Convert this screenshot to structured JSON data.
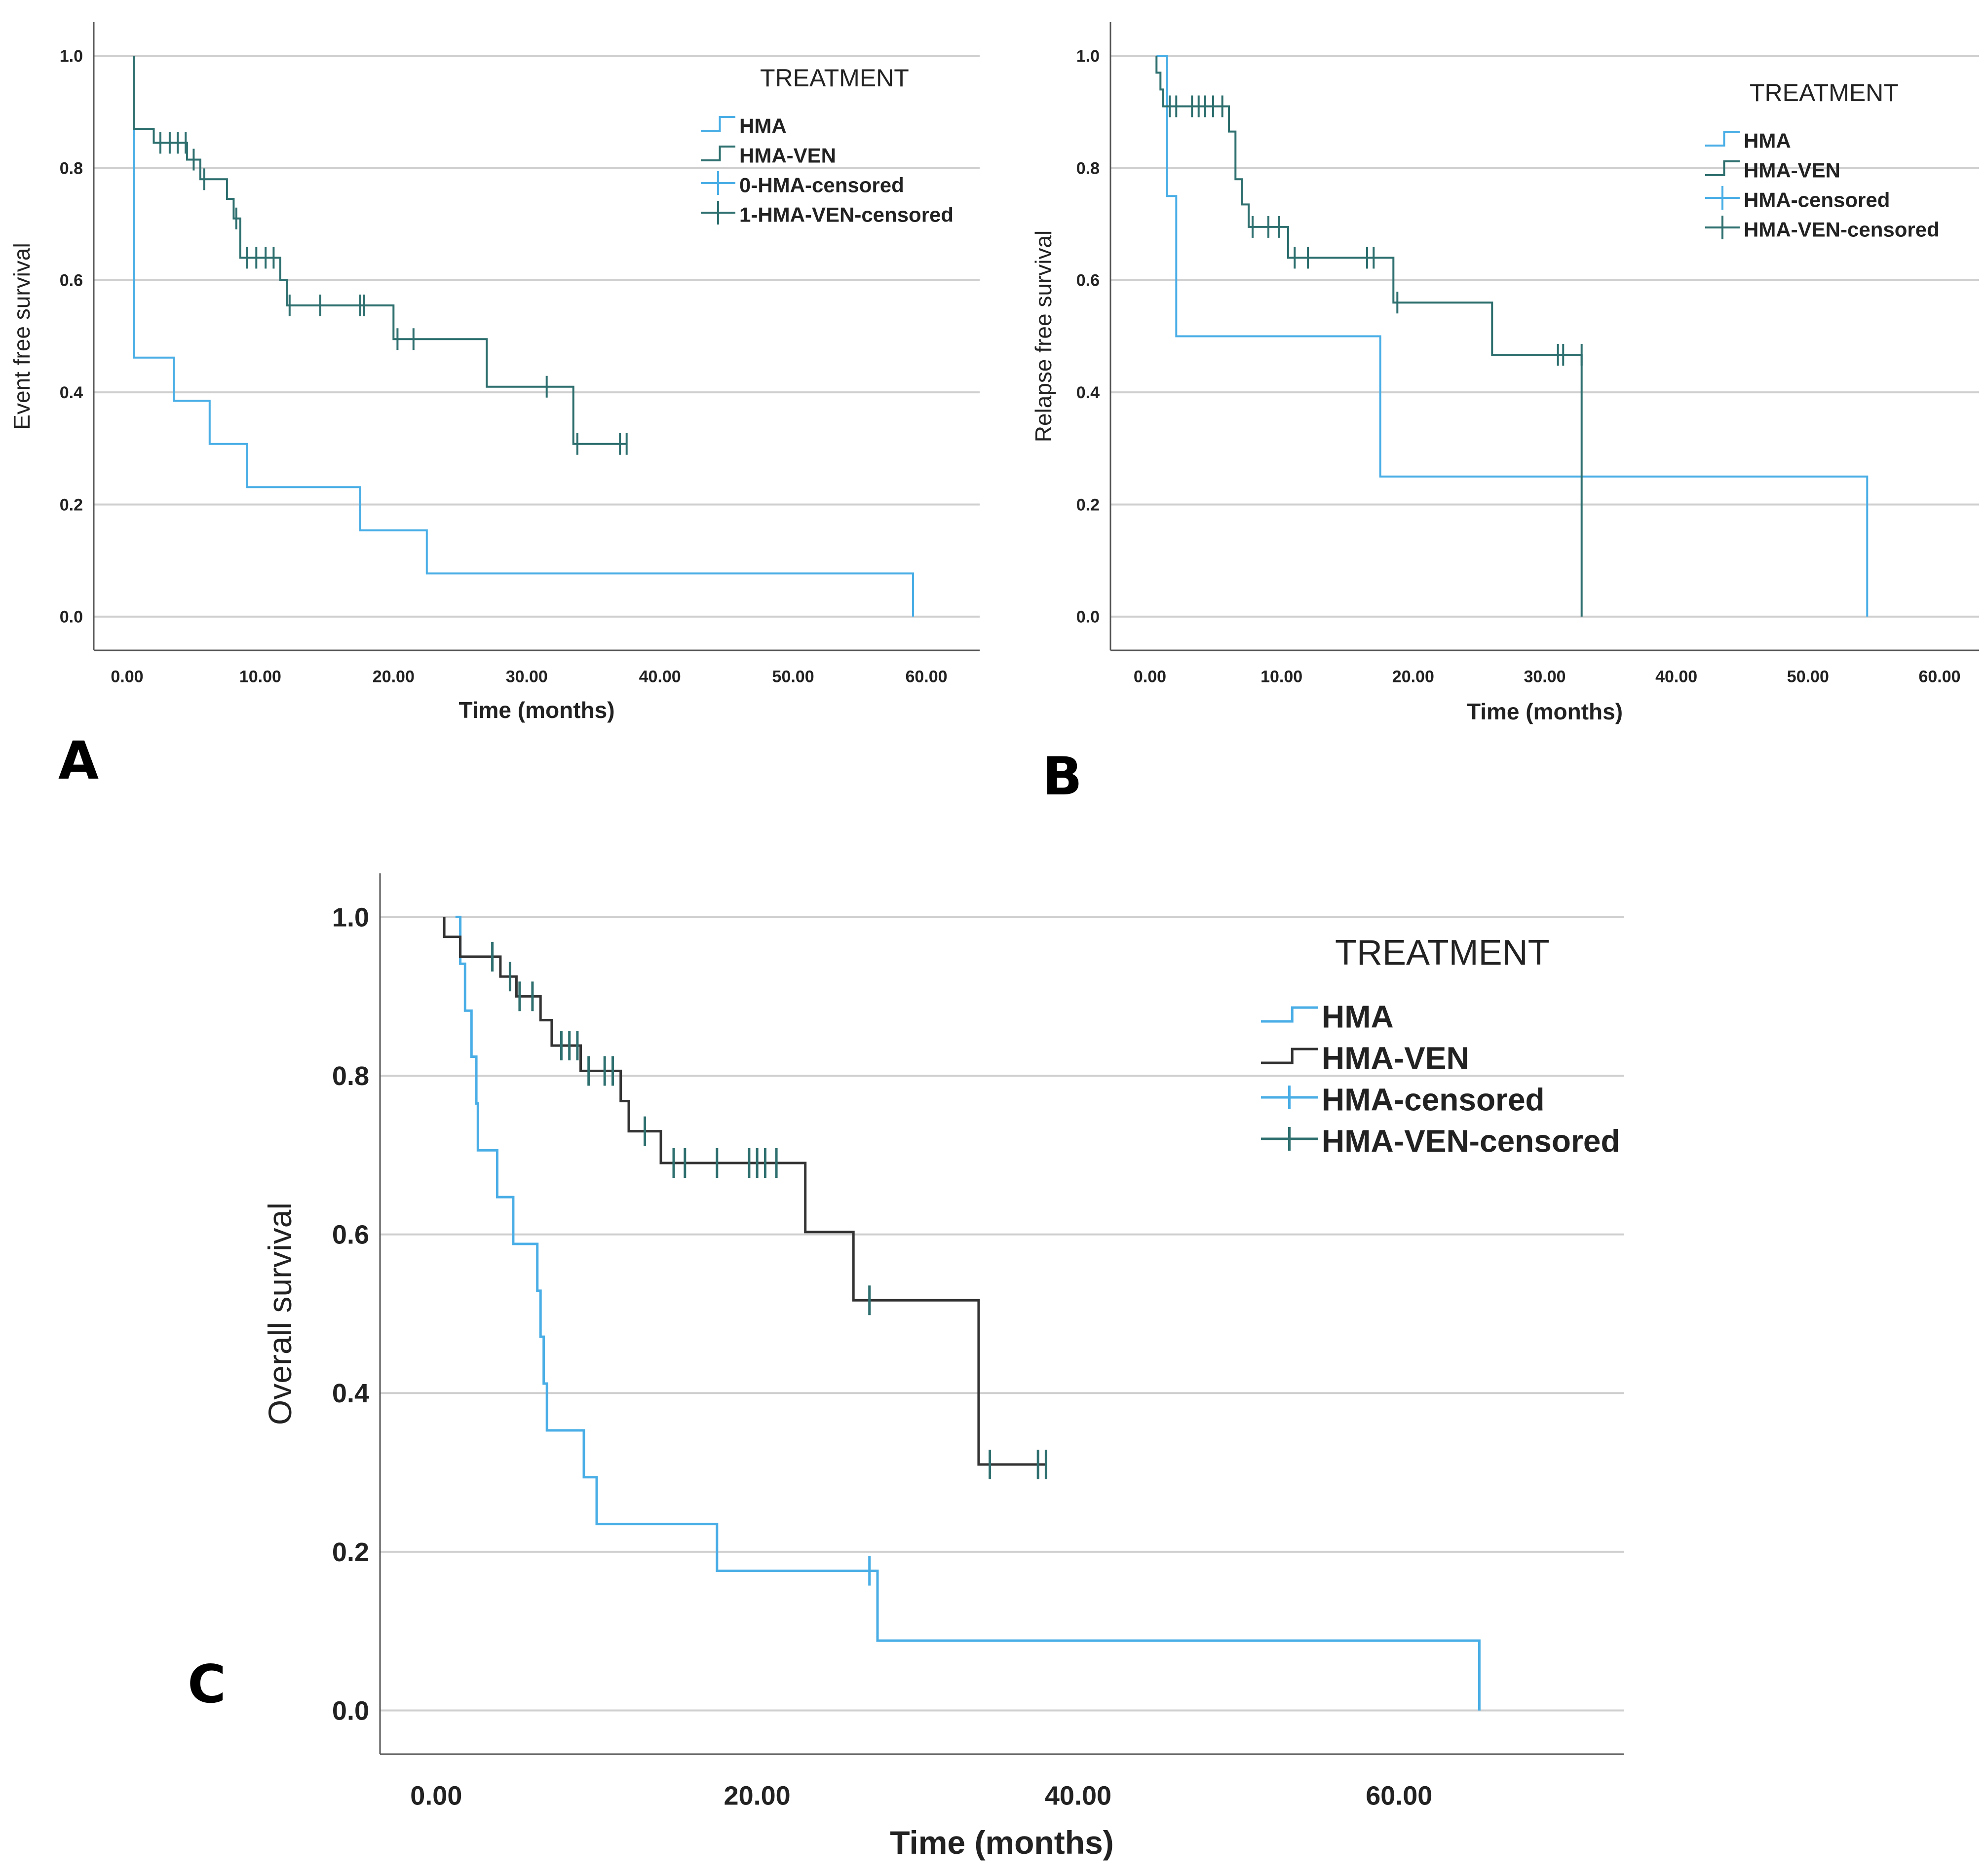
{
  "colors": {
    "hma": "#4aaee6",
    "hma_ven": "#2e6f6f",
    "hma_ven_c": "#333333",
    "grid": "#cfcfcf",
    "axis": "#555555",
    "text": "#222222"
  },
  "chart_data": [
    {
      "panel": "A",
      "type": "line",
      "step": true,
      "xlabel": "Time (months)",
      "ylabel": "Event free survival",
      "xlim": [
        -2.5,
        64
      ],
      "ylim": [
        -0.06,
        1.06
      ],
      "xticks": [
        0,
        10,
        20,
        30,
        40,
        50,
        60
      ],
      "xtick_labels": [
        "0.00",
        "10.00",
        "20.00",
        "30.00",
        "40.00",
        "50.00",
        "60.00"
      ],
      "yticks": [
        0,
        0.2,
        0.4,
        0.6,
        0.8,
        1.0
      ],
      "ytick_labels": [
        "0.0",
        "0.2",
        "0.4",
        "0.6",
        "0.8",
        "1.0"
      ],
      "grid": true,
      "legend": {
        "title": "TREATMENT",
        "position": "top-right",
        "entries": [
          "HMA",
          "HMA-VEN",
          "0-HMA-censored",
          "1-HMA-VEN-censored"
        ]
      },
      "series": [
        {
          "name": "HMA",
          "color_key": "hma",
          "points": [
            [
              0.5,
              1.0
            ],
            [
              0.5,
              0.462
            ],
            [
              3.5,
              0.462
            ],
            [
              3.5,
              0.385
            ],
            [
              6.2,
              0.385
            ],
            [
              6.2,
              0.308
            ],
            [
              9.0,
              0.308
            ],
            [
              9.0,
              0.231
            ],
            [
              17.5,
              0.231
            ],
            [
              17.5,
              0.154
            ],
            [
              22.5,
              0.154
            ],
            [
              22.5,
              0.077
            ],
            [
              59.0,
              0.077
            ],
            [
              59.0,
              0.0
            ]
          ],
          "censored": []
        },
        {
          "name": "HMA-VEN",
          "color_key": "hma_ven",
          "points": [
            [
              0.5,
              1.0
            ],
            [
              0.5,
              0.87
            ],
            [
              2.0,
              0.87
            ],
            [
              2.0,
              0.845
            ],
            [
              4.5,
              0.845
            ],
            [
              4.5,
              0.815
            ],
            [
              5.5,
              0.815
            ],
            [
              5.5,
              0.78
            ],
            [
              7.5,
              0.78
            ],
            [
              7.5,
              0.745
            ],
            [
              8.0,
              0.745
            ],
            [
              8.0,
              0.71
            ],
            [
              8.5,
              0.71
            ],
            [
              8.5,
              0.64
            ],
            [
              11.5,
              0.64
            ],
            [
              11.5,
              0.6
            ],
            [
              12.0,
              0.6
            ],
            [
              12.0,
              0.555
            ],
            [
              20.0,
              0.555
            ],
            [
              20.0,
              0.495
            ],
            [
              27.0,
              0.495
            ],
            [
              27.0,
              0.41
            ],
            [
              33.5,
              0.41
            ],
            [
              33.5,
              0.308
            ],
            [
              37.5,
              0.308
            ]
          ],
          "censored": [
            [
              2.5,
              0.845
            ],
            [
              3.2,
              0.845
            ],
            [
              3.8,
              0.845
            ],
            [
              4.4,
              0.845
            ],
            [
              5.0,
              0.815
            ],
            [
              5.8,
              0.78
            ],
            [
              8.2,
              0.71
            ],
            [
              9.0,
              0.64
            ],
            [
              9.7,
              0.64
            ],
            [
              10.4,
              0.64
            ],
            [
              11.0,
              0.64
            ],
            [
              12.2,
              0.555
            ],
            [
              14.5,
              0.555
            ],
            [
              17.5,
              0.555
            ],
            [
              17.8,
              0.555
            ],
            [
              20.3,
              0.495
            ],
            [
              21.5,
              0.495
            ],
            [
              31.5,
              0.41
            ],
            [
              33.8,
              0.308
            ],
            [
              37.0,
              0.308
            ],
            [
              37.5,
              0.308
            ]
          ]
        }
      ]
    },
    {
      "panel": "B",
      "type": "line",
      "step": true,
      "xlabel": "Time (months)",
      "ylabel": "Relapse free survival",
      "xlim": [
        -3,
        63
      ],
      "ylim": [
        -0.06,
        1.06
      ],
      "xticks": [
        0,
        10,
        20,
        30,
        40,
        50,
        60
      ],
      "xtick_labels": [
        "0.00",
        "10.00",
        "20.00",
        "30.00",
        "40.00",
        "50.00",
        "60.00"
      ],
      "yticks": [
        0,
        0.2,
        0.4,
        0.6,
        0.8,
        1.0
      ],
      "ytick_labels": [
        "0.0",
        "0.2",
        "0.4",
        "0.6",
        "0.8",
        "1.0"
      ],
      "grid": true,
      "legend": {
        "title": "TREATMENT",
        "position": "top-right",
        "entries": [
          "HMA",
          "HMA-VEN",
          "HMA-censored",
          "HMA-VEN-censored"
        ]
      },
      "series": [
        {
          "name": "HMA",
          "color_key": "hma",
          "points": [
            [
              0.5,
              1.0
            ],
            [
              1.3,
              1.0
            ],
            [
              1.3,
              0.75
            ],
            [
              2.0,
              0.75
            ],
            [
              2.0,
              0.5
            ],
            [
              17.5,
              0.5
            ],
            [
              17.5,
              0.25
            ],
            [
              54.5,
              0.25
            ],
            [
              54.5,
              0.0
            ]
          ],
          "censored": []
        },
        {
          "name": "HMA-VEN",
          "color_key": "hma_ven",
          "points": [
            [
              0.5,
              1.0
            ],
            [
              0.5,
              0.97
            ],
            [
              0.8,
              0.97
            ],
            [
              0.8,
              0.94
            ],
            [
              1.0,
              0.94
            ],
            [
              1.0,
              0.91
            ],
            [
              6.0,
              0.91
            ],
            [
              6.0,
              0.865
            ],
            [
              6.5,
              0.865
            ],
            [
              6.5,
              0.78
            ],
            [
              7.0,
              0.78
            ],
            [
              7.0,
              0.735
            ],
            [
              7.5,
              0.735
            ],
            [
              7.5,
              0.695
            ],
            [
              10.5,
              0.695
            ],
            [
              10.5,
              0.64
            ],
            [
              18.5,
              0.64
            ],
            [
              18.5,
              0.56
            ],
            [
              26.0,
              0.56
            ],
            [
              26.0,
              0.467
            ],
            [
              32.8,
              0.467
            ],
            [
              32.8,
              0.0
            ]
          ],
          "censored": [
            [
              1.5,
              0.91
            ],
            [
              2.0,
              0.91
            ],
            [
              3.2,
              0.91
            ],
            [
              3.7,
              0.91
            ],
            [
              4.2,
              0.91
            ],
            [
              4.8,
              0.91
            ],
            [
              5.5,
              0.91
            ],
            [
              7.8,
              0.695
            ],
            [
              9.0,
              0.695
            ],
            [
              9.8,
              0.695
            ],
            [
              11.0,
              0.64
            ],
            [
              12.0,
              0.64
            ],
            [
              16.5,
              0.64
            ],
            [
              17.0,
              0.64
            ],
            [
              18.8,
              0.56
            ],
            [
              31.0,
              0.467
            ],
            [
              31.4,
              0.467
            ],
            [
              32.8,
              0.467
            ]
          ]
        }
      ]
    },
    {
      "panel": "C",
      "type": "line",
      "step": true,
      "xlabel": "Time (months)",
      "ylabel": "Overall survival",
      "xlim": [
        -3.5,
        74
      ],
      "ylim": [
        -0.055,
        1.055
      ],
      "xticks": [
        0,
        20,
        40,
        60
      ],
      "xtick_labels": [
        "0.00",
        "20.00",
        "40.00",
        "60.00"
      ],
      "yticks": [
        0,
        0.2,
        0.4,
        0.6,
        0.8,
        1.0
      ],
      "ytick_labels": [
        "0.0",
        "0.2",
        "0.4",
        "0.6",
        "0.8",
        "1.0"
      ],
      "grid": true,
      "legend": {
        "title": "TREATMENT",
        "position": "top-right",
        "entries": [
          "HMA",
          "HMA-VEN",
          "HMA-censored",
          "HMA-VEN-censored"
        ]
      },
      "series": [
        {
          "name": "HMA",
          "color_key": "hma",
          "points": [
            [
              1.2,
              1.0
            ],
            [
              1.5,
              1.0
            ],
            [
              1.5,
              0.941
            ],
            [
              1.8,
              0.941
            ],
            [
              1.8,
              0.882
            ],
            [
              2.2,
              0.882
            ],
            [
              2.2,
              0.824
            ],
            [
              2.5,
              0.824
            ],
            [
              2.5,
              0.765
            ],
            [
              2.6,
              0.765
            ],
            [
              2.6,
              0.706
            ],
            [
              3.8,
              0.706
            ],
            [
              3.8,
              0.647
            ],
            [
              4.8,
              0.647
            ],
            [
              4.8,
              0.588
            ],
            [
              6.3,
              0.588
            ],
            [
              6.3,
              0.529
            ],
            [
              6.5,
              0.529
            ],
            [
              6.5,
              0.471
            ],
            [
              6.7,
              0.471
            ],
            [
              6.7,
              0.412
            ],
            [
              6.9,
              0.412
            ],
            [
              6.9,
              0.353
            ],
            [
              9.2,
              0.353
            ],
            [
              9.2,
              0.294
            ],
            [
              10.0,
              0.294
            ],
            [
              10.0,
              0.235
            ],
            [
              17.5,
              0.235
            ],
            [
              17.5,
              0.176
            ],
            [
              27.5,
              0.176
            ],
            [
              27.5,
              0.088
            ],
            [
              65.0,
              0.088
            ],
            [
              65.0,
              0.0
            ]
          ],
          "censored": [
            [
              27.0,
              0.176
            ]
          ]
        },
        {
          "name": "HMA-VEN",
          "color_key": "hma_ven_c",
          "points": [
            [
              0.5,
              1.0
            ],
            [
              0.5,
              0.975
            ],
            [
              1.5,
              0.975
            ],
            [
              1.5,
              0.95
            ],
            [
              4.0,
              0.95
            ],
            [
              4.0,
              0.925
            ],
            [
              5.0,
              0.925
            ],
            [
              5.0,
              0.9
            ],
            [
              6.5,
              0.9
            ],
            [
              6.5,
              0.87
            ],
            [
              7.2,
              0.87
            ],
            [
              7.2,
              0.838
            ],
            [
              9.0,
              0.838
            ],
            [
              9.0,
              0.806
            ],
            [
              11.5,
              0.806
            ],
            [
              11.5,
              0.768
            ],
            [
              12.0,
              0.768
            ],
            [
              12.0,
              0.73
            ],
            [
              14.0,
              0.73
            ],
            [
              14.0,
              0.69
            ],
            [
              23.0,
              0.69
            ],
            [
              23.0,
              0.603
            ],
            [
              26.0,
              0.603
            ],
            [
              26.0,
              0.517
            ],
            [
              33.8,
              0.517
            ],
            [
              33.8,
              0.31
            ],
            [
              38.0,
              0.31
            ]
          ],
          "censored": [
            [
              3.5,
              0.95
            ],
            [
              4.6,
              0.925
            ],
            [
              5.2,
              0.9
            ],
            [
              6.0,
              0.9
            ],
            [
              7.8,
              0.838
            ],
            [
              8.3,
              0.838
            ],
            [
              8.8,
              0.838
            ],
            [
              9.5,
              0.806
            ],
            [
              10.5,
              0.806
            ],
            [
              11.0,
              0.806
            ],
            [
              13.0,
              0.73
            ],
            [
              14.8,
              0.69
            ],
            [
              15.5,
              0.69
            ],
            [
              17.5,
              0.69
            ],
            [
              19.5,
              0.69
            ],
            [
              20.0,
              0.69
            ],
            [
              20.5,
              0.69
            ],
            [
              21.2,
              0.69
            ],
            [
              27.0,
              0.517
            ],
            [
              34.5,
              0.31
            ],
            [
              37.5,
              0.31
            ],
            [
              38.0,
              0.31
            ]
          ]
        }
      ]
    }
  ]
}
